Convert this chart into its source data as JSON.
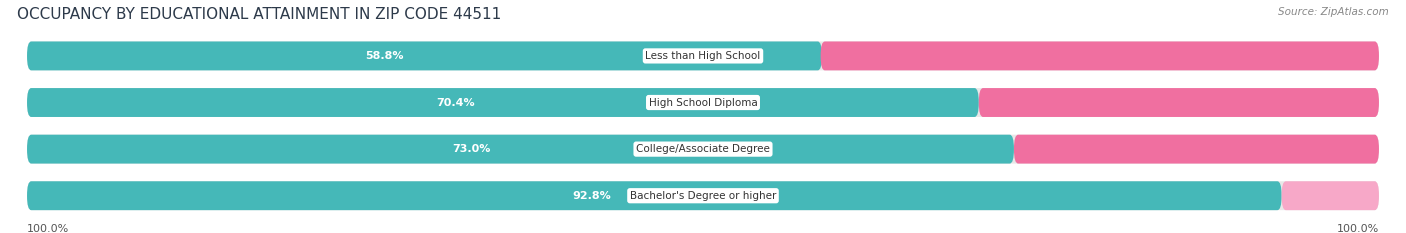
{
  "title": "OCCUPANCY BY EDUCATIONAL ATTAINMENT IN ZIP CODE 44511",
  "source": "Source: ZipAtlas.com",
  "categories": [
    "Less than High School",
    "High School Diploma",
    "College/Associate Degree",
    "Bachelor's Degree or higher"
  ],
  "owner_values": [
    58.8,
    70.4,
    73.0,
    92.8
  ],
  "renter_values": [
    41.3,
    29.6,
    27.0,
    7.2
  ],
  "owner_color": "#45b8b8",
  "renter_color": "#f06fa0",
  "renter_color_light": "#f7a8c8",
  "background_color": "#f5f5f5",
  "bar_bg_color": "#e8e8e8",
  "title_color": "#2d3a4a",
  "label_color": "#ffffff",
  "category_color": "#333333",
  "value_outside_color": "#555555",
  "title_fontsize": 11,
  "label_fontsize": 8,
  "legend_fontsize": 8.5,
  "axis_label_fontsize": 8
}
